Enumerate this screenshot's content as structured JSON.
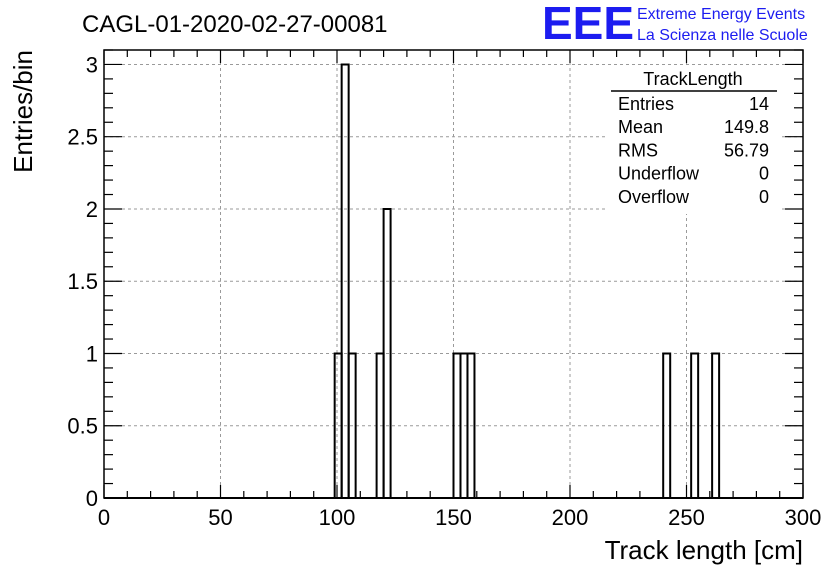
{
  "brand": {
    "logo_text": "EEE",
    "line1": "Extreme Energy Events",
    "line2": "La Scienza nelle Scuole",
    "color": "#1c1cf0"
  },
  "chart_data": {
    "type": "bar",
    "title": "CAGL-01-2020-02-27-00081",
    "xlabel": "Track length [cm]",
    "ylabel": "Entries/bin",
    "xlim": [
      0,
      300
    ],
    "ylim": [
      0,
      3.1
    ],
    "grid": true,
    "bin_width": 3,
    "x_ticks": [
      0,
      50,
      100,
      150,
      200,
      250,
      300
    ],
    "y_ticks": [
      0,
      0.5,
      1,
      1.5,
      2,
      2.5,
      3
    ],
    "x_tick_labels": [
      "0",
      "50",
      "100",
      "150",
      "200",
      "250",
      "300"
    ],
    "y_tick_labels": [
      "0",
      "0.5",
      "1",
      "1.5",
      "2",
      "2.5",
      "3"
    ],
    "bins": [
      {
        "x": 99,
        "count": 1
      },
      {
        "x": 102,
        "count": 3
      },
      {
        "x": 105,
        "count": 1
      },
      {
        "x": 117,
        "count": 1
      },
      {
        "x": 120,
        "count": 2
      },
      {
        "x": 150,
        "count": 1
      },
      {
        "x": 153,
        "count": 1
      },
      {
        "x": 156,
        "count": 1
      },
      {
        "x": 240,
        "count": 1
      },
      {
        "x": 252,
        "count": 1
      },
      {
        "x": 261,
        "count": 1
      }
    ],
    "stats_box": {
      "title": "TrackLength",
      "placement": "top-right",
      "rows": [
        {
          "label": "Entries",
          "value": "14"
        },
        {
          "label": "Mean",
          "value": "149.8"
        },
        {
          "label": "RMS",
          "value": "56.79"
        },
        {
          "label": "Underflow",
          "value": "0"
        },
        {
          "label": "Overflow",
          "value": "0"
        }
      ]
    }
  }
}
